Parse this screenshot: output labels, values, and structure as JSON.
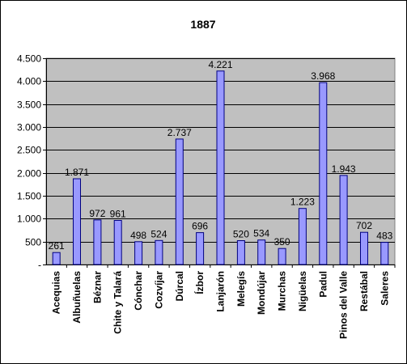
{
  "chart_data": {
    "type": "bar",
    "title": "1887",
    "categories": [
      "Acequias",
      "Albuñuelas",
      "Béznar",
      "Chite y Talará",
      "Cónchar",
      "Cozvíjar",
      "Dúrcal",
      "Ízbor",
      "Lanjarón",
      "Melegís",
      "Mondújar",
      "Murchas",
      "Nigüelas",
      "Padul",
      "Pinos del Valle",
      "Restábal",
      "Saleres"
    ],
    "values": [
      261,
      1871,
      972,
      961,
      498,
      524,
      2737,
      696,
      4221,
      520,
      534,
      350,
      1223,
      3968,
      1943,
      702,
      483
    ],
    "value_labels": [
      "261",
      "1.871",
      "972",
      "961",
      "498",
      "524",
      "2.737",
      "696",
      "4.221",
      "520",
      "534",
      "350",
      "1.223",
      "3.968",
      "1.943",
      "702",
      "483"
    ],
    "ylim": [
      0,
      4500
    ],
    "yticks": [
      0,
      500,
      1000,
      1500,
      2000,
      2500,
      3000,
      3500,
      4000,
      4500
    ],
    "ytick_labels": [
      "-",
      "500",
      "1.000",
      "1.500",
      "2.000",
      "2.500",
      "3.000",
      "3.500",
      "4.000",
      "4.500"
    ],
    "xlabel": "",
    "ylabel": "",
    "grid": true,
    "legend": "none",
    "colors": {
      "plot_background": "#c0c0c0",
      "bar_fill": "#9999ff",
      "bar_stroke": "#000080",
      "grid": "#000000"
    }
  }
}
